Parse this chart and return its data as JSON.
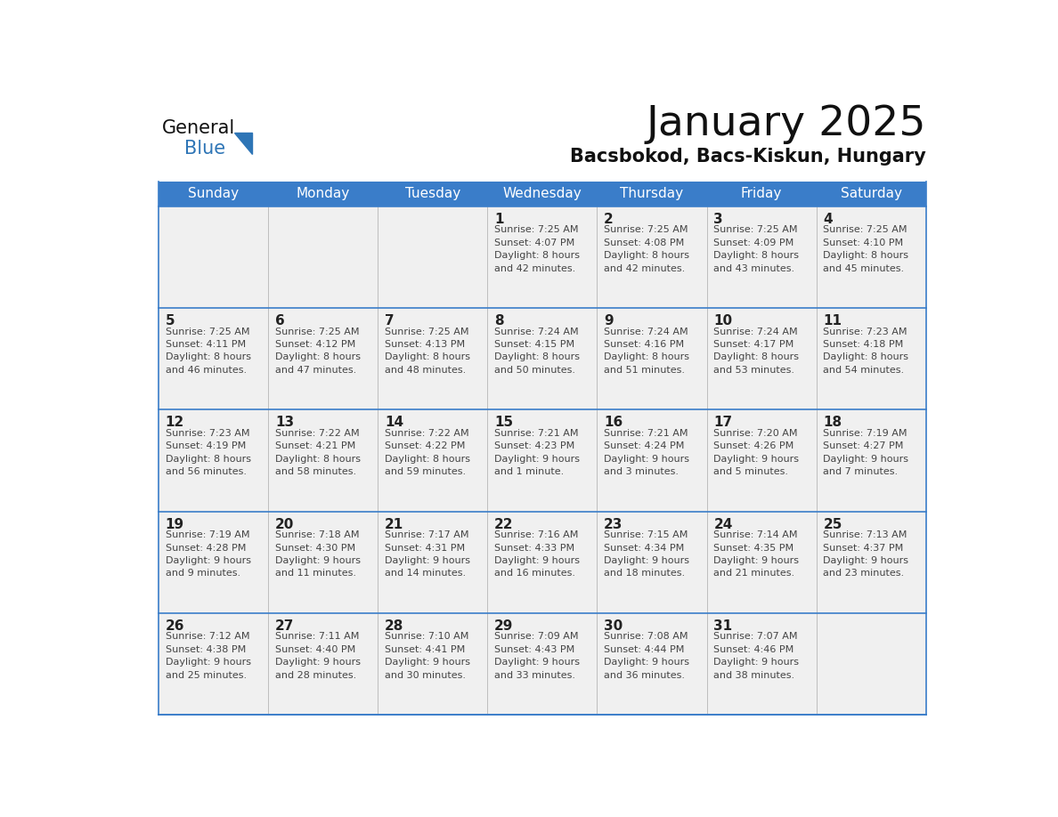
{
  "title": "January 2025",
  "subtitle": "Bacsbokod, Bacs-Kiskun, Hungary",
  "days_of_week": [
    "Sunday",
    "Monday",
    "Tuesday",
    "Wednesday",
    "Thursday",
    "Friday",
    "Saturday"
  ],
  "header_bg_color": "#3A7DC9",
  "header_text_color": "#FFFFFF",
  "cell_bg_color": "#F0F0F0",
  "cell_border_color": "#CCCCCC",
  "row_divider_color": "#3A7DC9",
  "text_color": "#444444",
  "day_num_color": "#222222",
  "title_color": "#111111",
  "subtitle_color": "#111111",
  "logo_general_color": "#111111",
  "logo_blue_color": "#2E75B6",
  "calendar_data": [
    [
      {
        "day": null,
        "info": null
      },
      {
        "day": null,
        "info": null
      },
      {
        "day": null,
        "info": null
      },
      {
        "day": "1",
        "info": "Sunrise: 7:25 AM\nSunset: 4:07 PM\nDaylight: 8 hours\nand 42 minutes."
      },
      {
        "day": "2",
        "info": "Sunrise: 7:25 AM\nSunset: 4:08 PM\nDaylight: 8 hours\nand 42 minutes."
      },
      {
        "day": "3",
        "info": "Sunrise: 7:25 AM\nSunset: 4:09 PM\nDaylight: 8 hours\nand 43 minutes."
      },
      {
        "day": "4",
        "info": "Sunrise: 7:25 AM\nSunset: 4:10 PM\nDaylight: 8 hours\nand 45 minutes."
      }
    ],
    [
      {
        "day": "5",
        "info": "Sunrise: 7:25 AM\nSunset: 4:11 PM\nDaylight: 8 hours\nand 46 minutes."
      },
      {
        "day": "6",
        "info": "Sunrise: 7:25 AM\nSunset: 4:12 PM\nDaylight: 8 hours\nand 47 minutes."
      },
      {
        "day": "7",
        "info": "Sunrise: 7:25 AM\nSunset: 4:13 PM\nDaylight: 8 hours\nand 48 minutes."
      },
      {
        "day": "8",
        "info": "Sunrise: 7:24 AM\nSunset: 4:15 PM\nDaylight: 8 hours\nand 50 minutes."
      },
      {
        "day": "9",
        "info": "Sunrise: 7:24 AM\nSunset: 4:16 PM\nDaylight: 8 hours\nand 51 minutes."
      },
      {
        "day": "10",
        "info": "Sunrise: 7:24 AM\nSunset: 4:17 PM\nDaylight: 8 hours\nand 53 minutes."
      },
      {
        "day": "11",
        "info": "Sunrise: 7:23 AM\nSunset: 4:18 PM\nDaylight: 8 hours\nand 54 minutes."
      }
    ],
    [
      {
        "day": "12",
        "info": "Sunrise: 7:23 AM\nSunset: 4:19 PM\nDaylight: 8 hours\nand 56 minutes."
      },
      {
        "day": "13",
        "info": "Sunrise: 7:22 AM\nSunset: 4:21 PM\nDaylight: 8 hours\nand 58 minutes."
      },
      {
        "day": "14",
        "info": "Sunrise: 7:22 AM\nSunset: 4:22 PM\nDaylight: 8 hours\nand 59 minutes."
      },
      {
        "day": "15",
        "info": "Sunrise: 7:21 AM\nSunset: 4:23 PM\nDaylight: 9 hours\nand 1 minute."
      },
      {
        "day": "16",
        "info": "Sunrise: 7:21 AM\nSunset: 4:24 PM\nDaylight: 9 hours\nand 3 minutes."
      },
      {
        "day": "17",
        "info": "Sunrise: 7:20 AM\nSunset: 4:26 PM\nDaylight: 9 hours\nand 5 minutes."
      },
      {
        "day": "18",
        "info": "Sunrise: 7:19 AM\nSunset: 4:27 PM\nDaylight: 9 hours\nand 7 minutes."
      }
    ],
    [
      {
        "day": "19",
        "info": "Sunrise: 7:19 AM\nSunset: 4:28 PM\nDaylight: 9 hours\nand 9 minutes."
      },
      {
        "day": "20",
        "info": "Sunrise: 7:18 AM\nSunset: 4:30 PM\nDaylight: 9 hours\nand 11 minutes."
      },
      {
        "day": "21",
        "info": "Sunrise: 7:17 AM\nSunset: 4:31 PM\nDaylight: 9 hours\nand 14 minutes."
      },
      {
        "day": "22",
        "info": "Sunrise: 7:16 AM\nSunset: 4:33 PM\nDaylight: 9 hours\nand 16 minutes."
      },
      {
        "day": "23",
        "info": "Sunrise: 7:15 AM\nSunset: 4:34 PM\nDaylight: 9 hours\nand 18 minutes."
      },
      {
        "day": "24",
        "info": "Sunrise: 7:14 AM\nSunset: 4:35 PM\nDaylight: 9 hours\nand 21 minutes."
      },
      {
        "day": "25",
        "info": "Sunrise: 7:13 AM\nSunset: 4:37 PM\nDaylight: 9 hours\nand 23 minutes."
      }
    ],
    [
      {
        "day": "26",
        "info": "Sunrise: 7:12 AM\nSunset: 4:38 PM\nDaylight: 9 hours\nand 25 minutes."
      },
      {
        "day": "27",
        "info": "Sunrise: 7:11 AM\nSunset: 4:40 PM\nDaylight: 9 hours\nand 28 minutes."
      },
      {
        "day": "28",
        "info": "Sunrise: 7:10 AM\nSunset: 4:41 PM\nDaylight: 9 hours\nand 30 minutes."
      },
      {
        "day": "29",
        "info": "Sunrise: 7:09 AM\nSunset: 4:43 PM\nDaylight: 9 hours\nand 33 minutes."
      },
      {
        "day": "30",
        "info": "Sunrise: 7:08 AM\nSunset: 4:44 PM\nDaylight: 9 hours\nand 36 minutes."
      },
      {
        "day": "31",
        "info": "Sunrise: 7:07 AM\nSunset: 4:46 PM\nDaylight: 9 hours\nand 38 minutes."
      },
      {
        "day": null,
        "info": null
      }
    ]
  ]
}
